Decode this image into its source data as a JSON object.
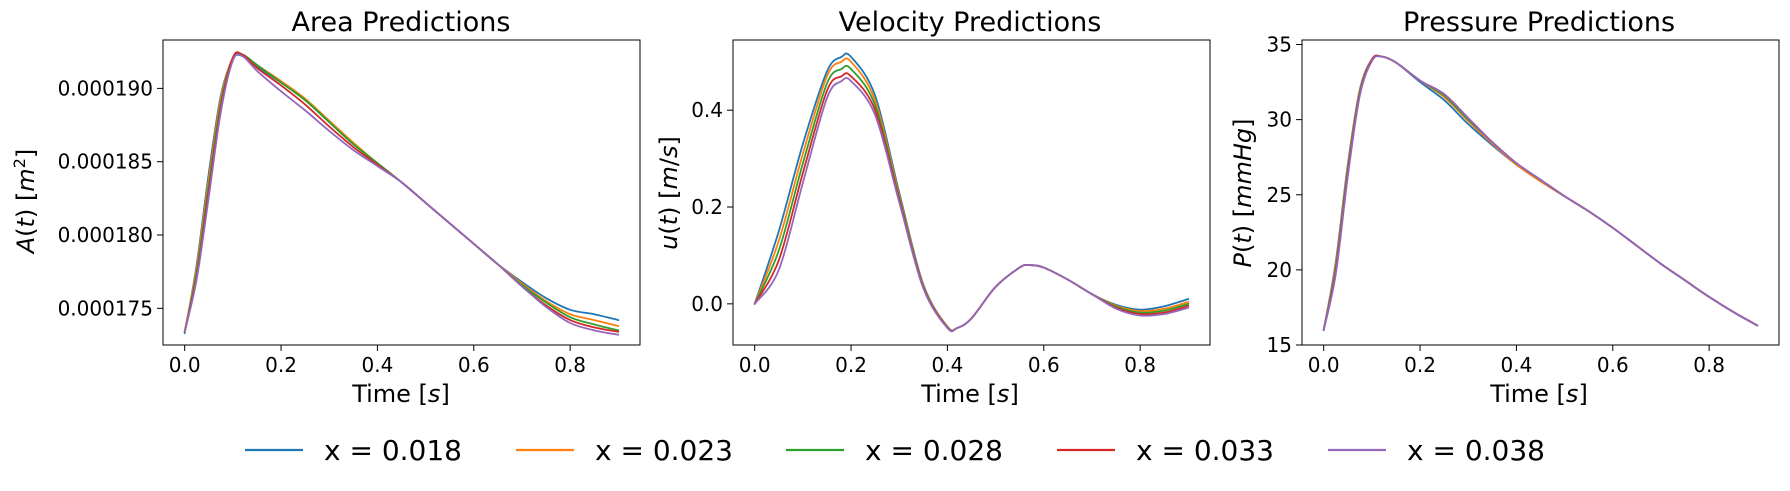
{
  "chart_data": [
    {
      "type": "line",
      "title": "Area Predictions",
      "xlabel": "Time [s]",
      "ylabel": "A(t) [m²]",
      "xlim": [
        -0.045,
        0.945
      ],
      "ylim": [
        0.0001725,
        0.0001933
      ],
      "xticks": [
        0.0,
        0.2,
        0.4,
        0.6,
        0.8
      ],
      "xtick_labels": [
        "0.0",
        "0.2",
        "0.4",
        "0.6",
        "0.8"
      ],
      "yticks": [
        0.000175,
        0.00018,
        0.000185,
        0.00019
      ],
      "ytick_labels": [
        "0.000175",
        "0.000180",
        "0.000185",
        "0.000190"
      ],
      "x": [
        0.0,
        0.025,
        0.05,
        0.075,
        0.1,
        0.12,
        0.15,
        0.2,
        0.25,
        0.3,
        0.35,
        0.4,
        0.45,
        0.5,
        0.55,
        0.6,
        0.65,
        0.7,
        0.75,
        0.8,
        0.85,
        0.9
      ],
      "series": [
        {
          "name": "x = 0.018",
          "values": [
            0.0001733,
            0.000178,
            0.0001842,
            0.0001895,
            0.000192,
            0.0001922,
            0.0001915,
            0.0001904,
            0.0001892,
            0.0001877,
            0.0001862,
            0.0001849,
            0.0001836,
            0.0001822,
            0.0001808,
            0.0001794,
            0.000178,
            0.0001768,
            0.0001757,
            0.0001749,
            0.0001746,
            0.0001742
          ]
        },
        {
          "name": "x = 0.023",
          "values": [
            0.0001734,
            0.0001778,
            0.0001838,
            0.0001893,
            0.0001921,
            0.0001923,
            0.0001916,
            0.0001905,
            0.0001893,
            0.0001878,
            0.0001863,
            0.0001849,
            0.0001836,
            0.0001822,
            0.0001808,
            0.0001794,
            0.000178,
            0.0001767,
            0.0001755,
            0.0001746,
            0.0001742,
            0.0001738
          ]
        },
        {
          "name": "x = 0.028",
          "values": [
            0.0001734,
            0.0001775,
            0.0001834,
            0.000189,
            0.0001921,
            0.0001923,
            0.0001916,
            0.0001904,
            0.0001892,
            0.0001877,
            0.0001862,
            0.0001849,
            0.0001836,
            0.0001822,
            0.0001808,
            0.0001794,
            0.000178,
            0.0001766,
            0.0001754,
            0.0001744,
            0.0001739,
            0.0001735
          ]
        },
        {
          "name": "x = 0.033",
          "values": [
            0.0001734,
            0.0001772,
            0.000183,
            0.0001887,
            0.0001921,
            0.0001923,
            0.0001914,
            0.0001902,
            0.0001889,
            0.0001874,
            0.000186,
            0.0001848,
            0.0001836,
            0.0001822,
            0.0001808,
            0.0001794,
            0.000178,
            0.0001765,
            0.0001752,
            0.0001742,
            0.0001737,
            0.0001734
          ]
        },
        {
          "name": "x = 0.038",
          "values": [
            0.0001734,
            0.000177,
            0.0001826,
            0.0001884,
            0.0001919,
            0.0001922,
            0.0001912,
            0.0001898,
            0.0001885,
            0.0001871,
            0.0001858,
            0.0001847,
            0.0001836,
            0.0001822,
            0.0001808,
            0.0001794,
            0.000178,
            0.0001765,
            0.0001751,
            0.000174,
            0.0001735,
            0.0001732
          ]
        }
      ]
    },
    {
      "type": "line",
      "title": "Velocity Predictions",
      "xlabel": "Time [s]",
      "ylabel": "u(t) [m/s]",
      "xlim": [
        -0.045,
        0.945
      ],
      "ylim": [
        -0.085,
        0.545
      ],
      "xticks": [
        0.0,
        0.2,
        0.4,
        0.6,
        0.8
      ],
      "xtick_labels": [
        "0.0",
        "0.2",
        "0.4",
        "0.6",
        "0.8"
      ],
      "yticks": [
        0.0,
        0.2,
        0.4
      ],
      "ytick_labels": [
        "0.0",
        "0.2",
        "0.4"
      ],
      "x": [
        0.0,
        0.05,
        0.1,
        0.15,
        0.18,
        0.2,
        0.25,
        0.3,
        0.35,
        0.4,
        0.42,
        0.45,
        0.5,
        0.55,
        0.57,
        0.6,
        0.65,
        0.7,
        0.75,
        0.8,
        0.85,
        0.9
      ],
      "series": [
        {
          "name": "x = 0.018",
          "values": [
            0.0,
            0.15,
            0.33,
            0.48,
            0.51,
            0.51,
            0.43,
            0.23,
            0.04,
            -0.047,
            -0.05,
            -0.03,
            0.035,
            0.075,
            0.08,
            0.075,
            0.05,
            0.02,
            -0.002,
            -0.012,
            -0.005,
            0.01
          ]
        },
        {
          "name": "x = 0.023",
          "values": [
            0.0,
            0.13,
            0.31,
            0.47,
            0.5,
            0.5,
            0.42,
            0.225,
            0.038,
            -0.047,
            -0.05,
            -0.03,
            0.035,
            0.075,
            0.08,
            0.075,
            0.05,
            0.02,
            -0.004,
            -0.015,
            -0.01,
            0.004
          ]
        },
        {
          "name": "x = 0.028",
          "values": [
            0.0,
            0.11,
            0.29,
            0.455,
            0.485,
            0.485,
            0.41,
            0.22,
            0.036,
            -0.048,
            -0.05,
            -0.03,
            0.035,
            0.075,
            0.08,
            0.075,
            0.05,
            0.02,
            -0.006,
            -0.018,
            -0.014,
            0.0
          ]
        },
        {
          "name": "x = 0.033",
          "values": [
            0.0,
            0.09,
            0.27,
            0.44,
            0.47,
            0.47,
            0.4,
            0.215,
            0.034,
            -0.049,
            -0.05,
            -0.03,
            0.035,
            0.075,
            0.08,
            0.075,
            0.05,
            0.02,
            -0.008,
            -0.021,
            -0.018,
            -0.004
          ]
        },
        {
          "name": "x = 0.038",
          "values": [
            0.0,
            0.07,
            0.25,
            0.425,
            0.46,
            0.46,
            0.39,
            0.21,
            0.032,
            -0.05,
            -0.05,
            -0.03,
            0.035,
            0.075,
            0.08,
            0.075,
            0.05,
            0.02,
            -0.01,
            -0.024,
            -0.021,
            -0.008
          ]
        }
      ]
    },
    {
      "type": "line",
      "title": "Pressure Predictions",
      "xlabel": "Time [s]",
      "ylabel": "P(t) [mmHg]",
      "xlim": [
        -0.045,
        0.945
      ],
      "ylim": [
        15,
        35.3
      ],
      "xticks": [
        0.0,
        0.2,
        0.4,
        0.6,
        0.8
      ],
      "xtick_labels": [
        "0.0",
        "0.2",
        "0.4",
        "0.6",
        "0.8"
      ],
      "yticks": [
        15,
        20,
        25,
        30,
        35
      ],
      "ytick_labels": [
        "15",
        "20",
        "25",
        "30",
        "35"
      ],
      "x": [
        0.0,
        0.025,
        0.05,
        0.075,
        0.1,
        0.12,
        0.15,
        0.2,
        0.25,
        0.3,
        0.35,
        0.4,
        0.45,
        0.5,
        0.55,
        0.6,
        0.65,
        0.7,
        0.75,
        0.8,
        0.85,
        0.9
      ],
      "series": [
        {
          "name": "x = 0.018",
          "values": [
            16.0,
            20.5,
            27.0,
            32.0,
            34.0,
            34.2,
            33.8,
            32.5,
            31.3,
            29.7,
            28.3,
            27.0,
            25.9,
            24.9,
            23.9,
            22.8,
            21.6,
            20.4,
            19.3,
            18.2,
            17.2,
            16.3
          ]
        },
        {
          "name": "x = 0.023",
          "values": [
            16.0,
            20.3,
            26.8,
            31.9,
            34.0,
            34.2,
            33.8,
            32.6,
            31.5,
            29.9,
            28.4,
            27.0,
            25.9,
            24.9,
            23.9,
            22.8,
            21.6,
            20.4,
            19.3,
            18.2,
            17.2,
            16.3
          ]
        },
        {
          "name": "x = 0.028",
          "values": [
            16.0,
            20.1,
            26.6,
            31.8,
            34.0,
            34.2,
            33.8,
            32.6,
            31.6,
            30.0,
            28.5,
            27.1,
            26.0,
            24.9,
            23.9,
            22.8,
            21.6,
            20.4,
            19.3,
            18.2,
            17.2,
            16.3
          ]
        },
        {
          "name": "x = 0.033",
          "values": [
            16.0,
            19.9,
            26.4,
            31.7,
            34.0,
            34.2,
            33.8,
            32.6,
            31.7,
            30.1,
            28.5,
            27.1,
            26.0,
            24.9,
            23.9,
            22.8,
            21.6,
            20.4,
            19.3,
            18.2,
            17.2,
            16.3
          ]
        },
        {
          "name": "x = 0.038",
          "values": [
            16.0,
            19.7,
            26.2,
            31.6,
            33.9,
            34.2,
            33.8,
            32.6,
            31.7,
            30.1,
            28.5,
            27.1,
            26.0,
            24.9,
            23.9,
            22.8,
            21.6,
            20.4,
            19.3,
            18.2,
            17.2,
            16.3
          ]
        }
      ]
    }
  ],
  "legend": {
    "placement": "bottom",
    "entries": [
      {
        "label": "x = 0.018",
        "color": "#1f77b4"
      },
      {
        "label": "x = 0.023",
        "color": "#ff7f0e"
      },
      {
        "label": "x = 0.028",
        "color": "#2ca02c"
      },
      {
        "label": "x = 0.033",
        "color": "#d62728"
      },
      {
        "label": "x = 0.038",
        "color": "#9467bd"
      }
    ]
  }
}
